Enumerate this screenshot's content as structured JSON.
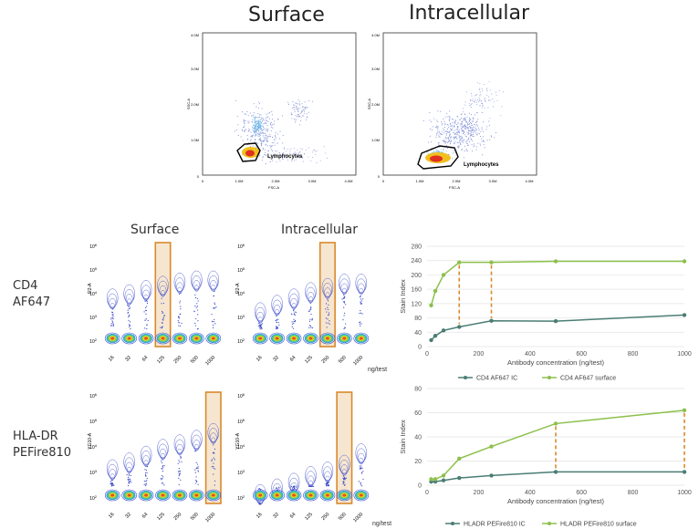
{
  "top_titles": {
    "surface": "Surface",
    "intracellular": "Intracellular"
  },
  "scatter": {
    "gate_label": "Lymphocytes",
    "x_ticks": [
      "0",
      "1.0M",
      "2.0M",
      "3.0M",
      "4.0M"
    ],
    "y_ticks": [
      "0",
      "1.0M",
      "2.0M",
      "3.0M",
      "4.0M"
    ],
    "x_axis": "FSC-A",
    "y_axis": "SSC-A"
  },
  "contour": {
    "titles": {
      "surface": "Surface",
      "intracellular": "Intracellular"
    },
    "concentrations": [
      "16",
      "32",
      "64",
      "125",
      "250",
      "500",
      "1000"
    ],
    "unit": "ng/test",
    "y_ticks": [
      "10^6",
      "10^5",
      "10^4",
      "10^3",
      "10^2"
    ],
    "y_label_cd4": "R2-A",
    "y_label_hla": "YG10-A"
  },
  "row_labels": {
    "cd4_line1": "CD4",
    "cd4_line2": "AF647",
    "hla_line1": "HLA-DR",
    "hla_line2": "PEFire810"
  },
  "colors": {
    "ic": "#4a7d74",
    "surface": "#8cc04b",
    "highlight": "#d9892c",
    "highlight_fill": "#f6e6d0",
    "contour": "#3848c8"
  },
  "chart_data": [
    {
      "type": "line",
      "title": "",
      "xlabel": "Antibody concentration (ng/test)",
      "ylabel": "Stain Index",
      "xlim": [
        0,
        1000
      ],
      "ylim": [
        0,
        280
      ],
      "x_ticks": [
        0,
        200,
        400,
        600,
        800,
        1000
      ],
      "y_ticks": [
        0,
        40,
        80,
        120,
        160,
        200,
        240,
        280
      ],
      "x": [
        16,
        32,
        64,
        125,
        250,
        500,
        1000
      ],
      "series": [
        {
          "name": "CD4 AF647 IC",
          "values": [
            18,
            30,
            45,
            55,
            72,
            71,
            88
          ]
        },
        {
          "name": "CD4 AF647 surface",
          "values": [
            115,
            155,
            200,
            235,
            235,
            238,
            238
          ]
        }
      ],
      "markers": [
        125,
        250
      ],
      "legend_position": "bottom"
    },
    {
      "type": "line",
      "title": "",
      "xlabel": "Antibody concentration (ng/test)",
      "ylabel": "Stain Index",
      "xlim": [
        0,
        1000
      ],
      "ylim": [
        0,
        80
      ],
      "x_ticks": [
        0,
        200,
        400,
        600,
        800,
        1000
      ],
      "y_ticks": [
        0,
        20,
        40,
        60,
        80
      ],
      "x": [
        16,
        32,
        64,
        125,
        250,
        500,
        1000
      ],
      "series": [
        {
          "name": "HLADR PEFire810 IC",
          "values": [
            3,
            3,
            4,
            6,
            8,
            11,
            11
          ]
        },
        {
          "name": "HLADR PEFire810 surface",
          "values": [
            5,
            5,
            8,
            22,
            32,
            51,
            62
          ]
        }
      ],
      "markers": [
        500,
        1000
      ],
      "legend_position": "bottom"
    }
  ]
}
